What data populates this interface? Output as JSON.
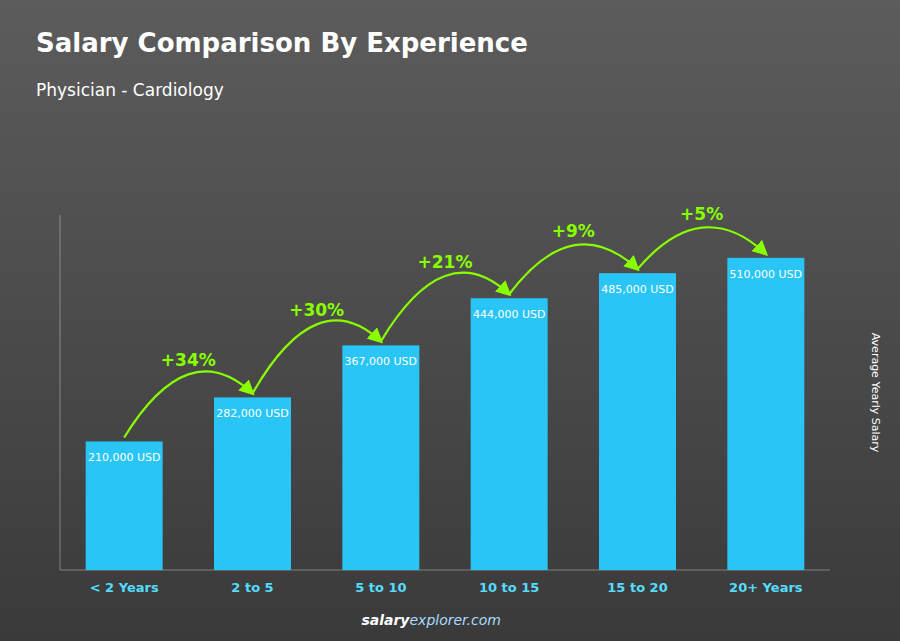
{
  "chart_data": {
    "type": "bar",
    "title": "Salary Comparison By Experience",
    "subtitle": "Physician - Cardiology",
    "y_label": "Average Yearly Salary",
    "categories": [
      "< 2 Years",
      "2 to 5",
      "5 to 10",
      "10 to 15",
      "15 to 20",
      "20+ Years"
    ],
    "values": [
      210000,
      282000,
      367000,
      444000,
      485000,
      510000
    ],
    "value_labels": [
      "210,000 USD",
      "282,000 USD",
      "367,000 USD",
      "444,000 USD",
      "485,000 USD",
      "510,000 USD"
    ],
    "data_labels": true,
    "annotations": [
      "+34%",
      "+30%",
      "+21%",
      "+9%",
      "+5%"
    ],
    "footer": [
      "salary",
      "explorer.com"
    ],
    "color": "#29c5f6",
    "ylim": [
      0,
      580000
    ],
    "tick_labels": "x",
    "grid": false
  }
}
